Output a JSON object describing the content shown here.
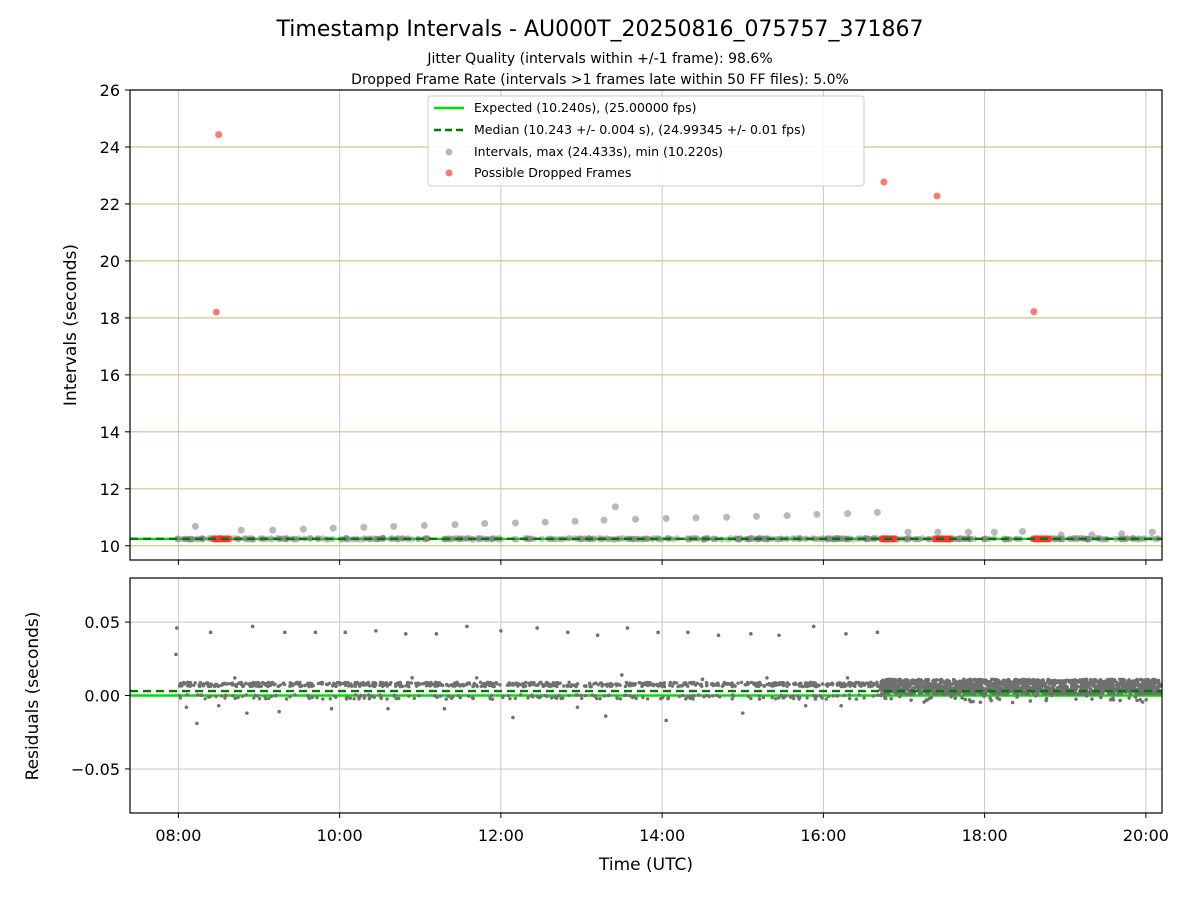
{
  "chart_data": [
    {
      "type": "scatter",
      "title": "Timestamp Intervals - AU000T_20250816_075757_371867",
      "subtitle_lines": [
        "Jitter Quality (intervals within +/-1 frame): 98.6%",
        "Dropped Frame Rate (intervals >1 frames late within 50 FF files): 5.0%"
      ],
      "xlabel": "",
      "ylabel": "Intervals (seconds)",
      "x_unit": "hours UTC",
      "xlim": [
        7.4,
        20.2
      ],
      "ylim": [
        9.5,
        26
      ],
      "yticks": [
        10,
        12,
        14,
        16,
        18,
        20,
        22,
        24,
        26
      ],
      "ytick_labels": [
        "10",
        "12",
        "14",
        "16",
        "18",
        "20",
        "22",
        "24",
        "26"
      ],
      "grid": true,
      "horizontal_gridline_color": "#d6c389",
      "legend_position": "top-center",
      "series": [
        {
          "name": "Expected (10.240s), (25.00000 fps)",
          "kind": "hline",
          "y": 10.24,
          "color": "#00e000",
          "style": "solid"
        },
        {
          "name": "Median (10.243 +/- 0.004 s), (24.99345 +/- 0.01 fps)",
          "kind": "hline",
          "y": 10.243,
          "color": "#007a00",
          "style": "dashed"
        },
        {
          "name": "Intervals, max (24.433s), min (10.220s)",
          "kind": "scatter",
          "color": "#808080",
          "opacity": 0.55,
          "points": [
            [
              7.99,
              10.24
            ],
            [
              8.21,
              10.68
            ],
            [
              8.78,
              10.55
            ],
            [
              9.17,
              10.55
            ],
            [
              9.55,
              10.58
            ],
            [
              9.92,
              10.62
            ],
            [
              10.3,
              10.65
            ],
            [
              10.67,
              10.68
            ],
            [
              11.05,
              10.71
            ],
            [
              11.43,
              10.74
            ],
            [
              11.8,
              10.78
            ],
            [
              12.18,
              10.8
            ],
            [
              12.55,
              10.83
            ],
            [
              12.92,
              10.86
            ],
            [
              13.28,
              10.9
            ],
            [
              13.42,
              11.37
            ],
            [
              13.67,
              10.93
            ],
            [
              14.05,
              10.96
            ],
            [
              14.42,
              10.98
            ],
            [
              14.8,
              11.0
            ],
            [
              15.17,
              11.03
            ],
            [
              15.55,
              11.06
            ],
            [
              15.92,
              11.1
            ],
            [
              16.3,
              11.13
            ],
            [
              16.67,
              11.17
            ],
            [
              17.05,
              10.48
            ],
            [
              17.42,
              10.48
            ],
            [
              17.8,
              10.48
            ],
            [
              18.12,
              10.48
            ],
            [
              18.47,
              10.5
            ],
            [
              18.95,
              10.38
            ],
            [
              19.33,
              10.38
            ],
            [
              19.7,
              10.42
            ],
            [
              20.08,
              10.48
            ]
          ]
        },
        {
          "name": "Possible Dropped Frames",
          "kind": "scatter",
          "color": "#ff3030",
          "opacity": 0.65,
          "points": [
            [
              8.5,
              24.433
            ],
            [
              8.47,
              18.2
            ],
            [
              16.75,
              22.77
            ],
            [
              17.41,
              22.28
            ],
            [
              18.61,
              18.22
            ]
          ],
          "clusters": [
            {
              "x_range": [
                8.43,
                8.63
              ],
              "y": 10.24
            },
            {
              "x_range": [
                16.72,
                16.88
              ],
              "y": 10.24
            },
            {
              "x_range": [
                17.38,
                17.58
              ],
              "y": 10.24
            },
            {
              "x_range": [
                18.6,
                18.8
              ],
              "y": 10.24
            }
          ]
        }
      ]
    },
    {
      "type": "scatter",
      "title": "",
      "xlabel": "Time (UTC)",
      "ylabel": "Residuals (seconds)",
      "x_unit": "hours UTC",
      "xlim": [
        7.4,
        20.2
      ],
      "ylim": [
        -0.08,
        0.08
      ],
      "yticks": [
        -0.05,
        0.0,
        0.05
      ],
      "ytick_labels": [
        "−0.05",
        "0.00",
        "0.05"
      ],
      "xticks": [
        8,
        10,
        12,
        14,
        16,
        18,
        20
      ],
      "xtick_labels": [
        "08:00",
        "10:00",
        "12:00",
        "14:00",
        "16:00",
        "18:00",
        "20:00"
      ],
      "grid": true,
      "series": [
        {
          "name": "",
          "kind": "hline",
          "y": 0.0,
          "color": "#00e000",
          "style": "solid"
        },
        {
          "name": "",
          "kind": "hline",
          "y": 0.003,
          "color": "#007a00",
          "style": "dashed"
        },
        {
          "name": "",
          "kind": "scatter",
          "color": "#707070",
          "bands": [
            {
              "x_range": [
                8.0,
                16.7
              ],
              "center": 0.0075,
              "spread": 0.0015,
              "lower_center": -0.001,
              "lower_spread": 0.0015
            },
            {
              "x_range": [
                16.7,
                20.2
              ],
              "center": 0.006,
              "spread": 0.005
            }
          ],
          "outliers": [
            [
              7.98,
              0.046
            ],
            [
              7.97,
              0.028
            ],
            [
              8.23,
              -0.019
            ],
            [
              8.4,
              0.043
            ],
            [
              8.92,
              0.047
            ],
            [
              9.32,
              0.043
            ],
            [
              9.7,
              0.043
            ],
            [
              10.07,
              0.043
            ],
            [
              10.45,
              0.044
            ],
            [
              10.82,
              0.042
            ],
            [
              11.2,
              0.042
            ],
            [
              11.58,
              0.047
            ],
            [
              12.0,
              0.044
            ],
            [
              12.45,
              0.046
            ],
            [
              12.83,
              0.043
            ],
            [
              13.2,
              0.041
            ],
            [
              13.57,
              0.046
            ],
            [
              13.95,
              0.043
            ],
            [
              14.32,
              0.043
            ],
            [
              14.7,
              0.041
            ],
            [
              15.1,
              0.042
            ],
            [
              15.45,
              0.041
            ],
            [
              15.88,
              0.047
            ],
            [
              16.28,
              0.042
            ],
            [
              16.67,
              0.043
            ],
            [
              8.1,
              -0.008
            ],
            [
              8.5,
              -0.007
            ],
            [
              8.85,
              -0.012
            ],
            [
              9.25,
              -0.011
            ],
            [
              9.9,
              -0.009
            ],
            [
              10.6,
              -0.009
            ],
            [
              11.3,
              -0.009
            ],
            [
              12.15,
              -0.015
            ],
            [
              12.95,
              -0.008
            ],
            [
              13.3,
              -0.014
            ],
            [
              14.05,
              -0.017
            ],
            [
              15.0,
              -0.012
            ],
            [
              15.78,
              -0.007
            ],
            [
              16.22,
              -0.007
            ],
            [
              8.7,
              0.012
            ],
            [
              10.9,
              0.012
            ],
            [
              11.7,
              0.012
            ],
            [
              13.5,
              0.014
            ],
            [
              14.5,
              0.011
            ],
            [
              15.3,
              0.012
            ],
            [
              16.3,
              0.012
            ]
          ]
        }
      ]
    }
  ]
}
